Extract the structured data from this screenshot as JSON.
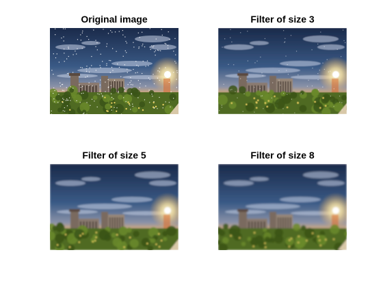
{
  "figure": {
    "panels": [
      {
        "id": "original",
        "title": "Original image",
        "noise": true,
        "blur": 0
      },
      {
        "id": "filter3",
        "title": "Filter of size 3",
        "noise": true,
        "blur": 0.6
      },
      {
        "id": "filter5",
        "title": "Filter of size 5",
        "noise": false,
        "blur": 1.0
      },
      {
        "id": "filter8",
        "title": "Filter of size 8",
        "noise": false,
        "blur": 1.4
      }
    ]
  },
  "colors": {
    "sky_top": "#1a2a4a",
    "sky_mid": "#3a5a86",
    "horizon": "#e8b070",
    "sun": "#fff8d8",
    "foliage": "#4f6a22",
    "building": "#7a6a5e"
  }
}
